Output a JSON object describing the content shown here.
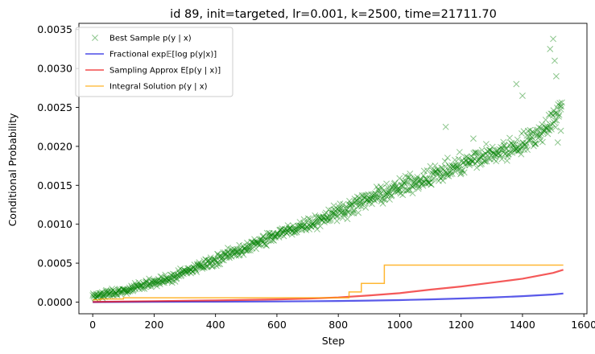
{
  "chart_data": {
    "type": "scatter",
    "title": "id 89, init=targeted, lr=0.001, k=2500, time=21711.70",
    "xlabel": "Step",
    "ylabel": "Conditional Probability",
    "xlim": [
      -45,
      1610
    ],
    "ylim": [
      -0.00015,
      0.00358
    ],
    "xticks": [
      0,
      200,
      400,
      600,
      800,
      1000,
      1200,
      1400,
      1600
    ],
    "xtick_labels": [
      "0",
      "200",
      "400",
      "600",
      "800",
      "1000",
      "1200",
      "1400",
      "1600"
    ],
    "yticks": [
      0.0,
      0.0005,
      0.001,
      0.0015,
      0.002,
      0.0025,
      0.003,
      0.0035
    ],
    "ytick_labels": [
      "0.0000",
      "0.0005",
      "0.0010",
      "0.0015",
      "0.0020",
      "0.0025",
      "0.0030",
      "0.0035"
    ],
    "grid": false,
    "legend_position": "top-left",
    "series": [
      {
        "name": "Best Sample p(y | x)",
        "kind": "scatter",
        "marker": "x",
        "color": "#008000",
        "x": [
          0,
          50,
          100,
          150,
          200,
          250,
          300,
          350,
          400,
          450,
          500,
          550,
          600,
          650,
          700,
          750,
          800,
          850,
          900,
          950,
          1000,
          1050,
          1100,
          1150,
          1200,
          1250,
          1300,
          1350,
          1400,
          1450,
          1500,
          1530
        ],
        "y": [
          7e-05,
          0.0001,
          0.00014,
          0.0002,
          0.00025,
          0.00031,
          0.00038,
          0.00046,
          0.00054,
          0.00062,
          0.0007,
          0.00078,
          0.00086,
          0.00094,
          0.001,
          0.00108,
          0.00116,
          0.00124,
          0.00132,
          0.0014,
          0.00146,
          0.00154,
          0.00162,
          0.00168,
          0.00176,
          0.00184,
          0.0019,
          0.00196,
          0.00204,
          0.00214,
          0.00236,
          0.0025
        ],
        "spread": 0.00012,
        "outliers": [
          {
            "x": 1380,
            "y": 0.0028
          },
          {
            "x": 1400,
            "y": 0.00265
          },
          {
            "x": 1490,
            "y": 0.00325
          },
          {
            "x": 1500,
            "y": 0.00338
          },
          {
            "x": 1505,
            "y": 0.0031
          },
          {
            "x": 1510,
            "y": 0.0029
          },
          {
            "x": 1515,
            "y": 0.00205
          },
          {
            "x": 1525,
            "y": 0.0022
          },
          {
            "x": 1150,
            "y": 0.00225
          },
          {
            "x": 1240,
            "y": 0.0021
          }
        ]
      },
      {
        "name": "Fractional exp𝔼[log p(y|x)]",
        "kind": "line",
        "color": "#0000dd",
        "x": [
          0,
          200,
          400,
          600,
          800,
          900,
          1000,
          1100,
          1200,
          1300,
          1400,
          1500,
          1533
        ],
        "y": [
          0.0,
          3e-06,
          5e-06,
          8e-06,
          1.4e-05,
          1.9e-05,
          2.6e-05,
          3.5e-05,
          4.6e-05,
          5.9e-05,
          7.6e-05,
          9.8e-05,
          0.00011
        ]
      },
      {
        "name": "Sampling Approx E[p(y | x)]",
        "kind": "line",
        "color": "#ee0000",
        "x": [
          0,
          200,
          400,
          600,
          700,
          800,
          900,
          1000,
          1100,
          1200,
          1300,
          1400,
          1500,
          1533
        ],
        "y": [
          2e-06,
          1.2e-05,
          2.2e-05,
          3.5e-05,
          4.5e-05,
          6e-05,
          8.5e-05,
          0.000115,
          0.00016,
          0.0002,
          0.00025,
          0.0003,
          0.000375,
          0.000415
        ]
      },
      {
        "name": "Integral Solution p(y | x)",
        "kind": "step",
        "color": "#ffa500",
        "x": [
          0,
          25,
          25,
          100,
          100,
          835,
          835,
          875,
          875,
          950,
          950,
          1533
        ],
        "y": [
          3e-05,
          3e-05,
          4e-05,
          4e-05,
          5.5e-05,
          5.5e-05,
          0.00013,
          0.00013,
          0.00024,
          0.00024,
          0.000475,
          0.000475
        ]
      }
    ]
  }
}
